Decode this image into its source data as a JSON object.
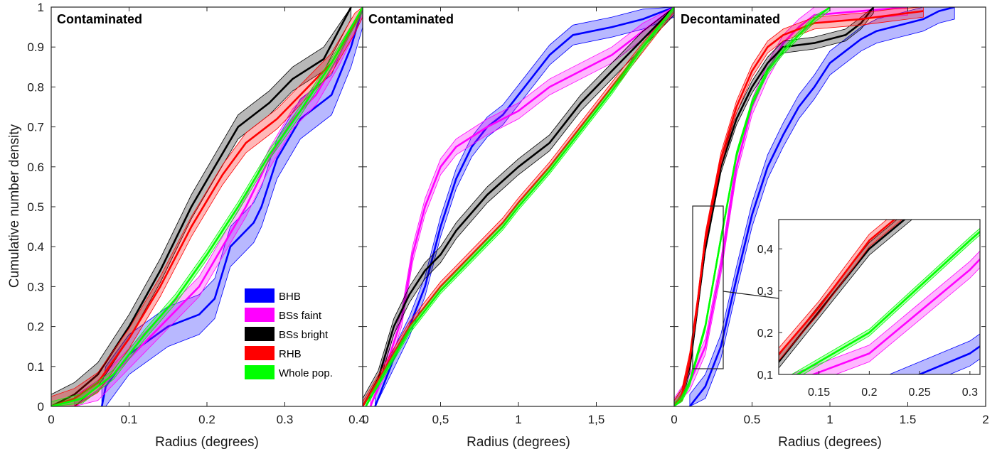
{
  "figure": {
    "ylabel": "Cumulative number density",
    "y_ticks": [
      "0",
      "0.1",
      "0.2",
      "0.3",
      "0.4",
      "0.5",
      "0.6",
      "0.7",
      "0.8",
      "0.9",
      "1"
    ]
  },
  "legend": {
    "items": [
      {
        "name": "BHB",
        "color": "#0000ff"
      },
      {
        "name": "BSs faint",
        "color": "#ff00ff"
      },
      {
        "name": "BSs bright",
        "color": "#000000"
      },
      {
        "name": "RHB",
        "color": "#ff0000"
      },
      {
        "name": "Whole pop.",
        "color": "#00ff00"
      }
    ]
  },
  "chart_data": [
    {
      "type": "line",
      "title": "Contaminated",
      "xlabel": "Radius (degrees)",
      "ylabel": "Cumulative number density",
      "xlim": [
        0,
        0.4
      ],
      "ylim": [
        0,
        1
      ],
      "x_ticks": [
        "0",
        "0.1",
        "0.2",
        "0.3",
        "0.4"
      ],
      "series": [
        {
          "name": "BHB",
          "color": "#0000ff",
          "band": 0.05,
          "points": [
            [
              0.065,
              0
            ],
            [
              0.07,
              0.05
            ],
            [
              0.1,
              0.13
            ],
            [
              0.15,
              0.2
            ],
            [
              0.19,
              0.23
            ],
            [
              0.21,
              0.27
            ],
            [
              0.23,
              0.4
            ],
            [
              0.26,
              0.46
            ],
            [
              0.27,
              0.5
            ],
            [
              0.29,
              0.62
            ],
            [
              0.32,
              0.72
            ],
            [
              0.36,
              0.78
            ],
            [
              0.385,
              0.9
            ],
            [
              0.4,
              1.0
            ]
          ]
        },
        {
          "name": "BSs faint",
          "color": "#ff00ff",
          "band": 0.025,
          "points": [
            [
              0.03,
              0
            ],
            [
              0.06,
              0.04
            ],
            [
              0.1,
              0.12
            ],
            [
              0.15,
              0.22
            ],
            [
              0.19,
              0.3
            ],
            [
              0.22,
              0.4
            ],
            [
              0.25,
              0.5
            ],
            [
              0.28,
              0.62
            ],
            [
              0.31,
              0.72
            ],
            [
              0.34,
              0.78
            ],
            [
              0.37,
              0.88
            ],
            [
              0.4,
              1.0
            ]
          ]
        },
        {
          "name": "BSs bright",
          "color": "#000000",
          "band": 0.03,
          "points": [
            [
              0,
              0
            ],
            [
              0.03,
              0.03
            ],
            [
              0.06,
              0.08
            ],
            [
              0.1,
              0.2
            ],
            [
              0.14,
              0.34
            ],
            [
              0.18,
              0.5
            ],
            [
              0.21,
              0.6
            ],
            [
              0.24,
              0.7
            ],
            [
              0.28,
              0.76
            ],
            [
              0.31,
              0.82
            ],
            [
              0.35,
              0.87
            ],
            [
              0.385,
              1.0
            ]
          ]
        },
        {
          "name": "RHB",
          "color": "#ff0000",
          "band": 0.025,
          "points": [
            [
              0,
              0
            ],
            [
              0.03,
              0.02
            ],
            [
              0.06,
              0.06
            ],
            [
              0.1,
              0.17
            ],
            [
              0.14,
              0.3
            ],
            [
              0.18,
              0.45
            ],
            [
              0.22,
              0.58
            ],
            [
              0.25,
              0.66
            ],
            [
              0.29,
              0.72
            ],
            [
              0.33,
              0.8
            ],
            [
              0.36,
              0.86
            ],
            [
              0.39,
              0.96
            ],
            [
              0.4,
              1.0
            ]
          ]
        },
        {
          "name": "Whole pop.",
          "color": "#00ff00",
          "band": 0.012,
          "points": [
            [
              0,
              0
            ],
            [
              0.04,
              0.02
            ],
            [
              0.08,
              0.08
            ],
            [
              0.12,
              0.18
            ],
            [
              0.16,
              0.27
            ],
            [
              0.2,
              0.38
            ],
            [
              0.24,
              0.5
            ],
            [
              0.28,
              0.63
            ],
            [
              0.32,
              0.74
            ],
            [
              0.36,
              0.86
            ],
            [
              0.4,
              1.0
            ]
          ]
        }
      ]
    },
    {
      "type": "line",
      "title": "Contaminated",
      "xlabel": "Radius (degrees)",
      "xlim": [
        0,
        2
      ],
      "ylim": [
        0,
        1
      ],
      "x_ticks": [
        "0",
        "0,5",
        "1",
        "1,5"
      ],
      "series": [
        {
          "name": "BHB",
          "color": "#0000ff",
          "band": 0.025,
          "points": [
            [
              0.08,
              0
            ],
            [
              0.2,
              0.12
            ],
            [
              0.3,
              0.2
            ],
            [
              0.4,
              0.3
            ],
            [
              0.5,
              0.45
            ],
            [
              0.6,
              0.57
            ],
            [
              0.7,
              0.65
            ],
            [
              0.8,
              0.7
            ],
            [
              0.9,
              0.73
            ],
            [
              1.0,
              0.78
            ],
            [
              1.1,
              0.83
            ],
            [
              1.2,
              0.88
            ],
            [
              1.35,
              0.93
            ],
            [
              1.6,
              0.95
            ],
            [
              1.8,
              0.97
            ],
            [
              2.0,
              1.0
            ]
          ]
        },
        {
          "name": "BSs faint",
          "color": "#ff00ff",
          "band": 0.02,
          "points": [
            [
              0.05,
              0
            ],
            [
              0.15,
              0.1
            ],
            [
              0.25,
              0.22
            ],
            [
              0.32,
              0.38
            ],
            [
              0.4,
              0.5
            ],
            [
              0.5,
              0.6
            ],
            [
              0.6,
              0.65
            ],
            [
              0.8,
              0.7
            ],
            [
              1.0,
              0.74
            ],
            [
              1.2,
              0.8
            ],
            [
              1.4,
              0.84
            ],
            [
              1.6,
              0.88
            ],
            [
              1.8,
              0.94
            ],
            [
              2.0,
              1.0
            ]
          ]
        },
        {
          "name": "BSs bright",
          "color": "#000000",
          "band": 0.02,
          "points": [
            [
              0,
              0
            ],
            [
              0.1,
              0.07
            ],
            [
              0.2,
              0.2
            ],
            [
              0.3,
              0.28
            ],
            [
              0.4,
              0.34
            ],
            [
              0.5,
              0.38
            ],
            [
              0.6,
              0.44
            ],
            [
              0.8,
              0.53
            ],
            [
              1.0,
              0.6
            ],
            [
              1.2,
              0.66
            ],
            [
              1.4,
              0.76
            ],
            [
              1.6,
              0.84
            ],
            [
              1.8,
              0.92
            ],
            [
              2.0,
              1.0
            ]
          ]
        },
        {
          "name": "RHB",
          "color": "#ff0000",
          "band": 0.012,
          "points": [
            [
              0,
              0
            ],
            [
              0.15,
              0.1
            ],
            [
              0.3,
              0.2
            ],
            [
              0.5,
              0.3
            ],
            [
              0.7,
              0.38
            ],
            [
              0.9,
              0.46
            ],
            [
              1.0,
              0.51
            ],
            [
              1.2,
              0.6
            ],
            [
              1.4,
              0.7
            ],
            [
              1.6,
              0.8
            ],
            [
              1.8,
              0.9
            ],
            [
              2.0,
              1.0
            ]
          ]
        },
        {
          "name": "Whole pop.",
          "color": "#00ff00",
          "band": 0.008,
          "points": [
            [
              0.02,
              0
            ],
            [
              0.15,
              0.09
            ],
            [
              0.3,
              0.19
            ],
            [
              0.5,
              0.29
            ],
            [
              0.7,
              0.37
            ],
            [
              0.9,
              0.45
            ],
            [
              1.0,
              0.5
            ],
            [
              1.2,
              0.59
            ],
            [
              1.4,
              0.69
            ],
            [
              1.6,
              0.79
            ],
            [
              1.8,
              0.9
            ],
            [
              2.0,
              1.0
            ]
          ]
        }
      ]
    },
    {
      "type": "line",
      "title": "Decontaminated",
      "xlabel": "Radius (degrees)",
      "xlim": [
        0,
        2
      ],
      "ylim": [
        0,
        1
      ],
      "x_ticks": [
        "0",
        "0.5",
        "1",
        "1.5",
        "2"
      ],
      "series": [
        {
          "name": "BHB",
          "color": "#0000ff",
          "band": 0.03,
          "points": [
            [
              0.1,
              0
            ],
            [
              0.2,
              0.05
            ],
            [
              0.3,
              0.15
            ],
            [
              0.4,
              0.32
            ],
            [
              0.5,
              0.48
            ],
            [
              0.6,
              0.6
            ],
            [
              0.7,
              0.68
            ],
            [
              0.8,
              0.75
            ],
            [
              0.9,
              0.8
            ],
            [
              1.0,
              0.86
            ],
            [
              1.1,
              0.89
            ],
            [
              1.2,
              0.92
            ],
            [
              1.3,
              0.94
            ],
            [
              1.4,
              0.95
            ],
            [
              1.6,
              0.97
            ],
            [
              1.7,
              0.99
            ],
            [
              1.8,
              1.0
            ]
          ]
        },
        {
          "name": "BSs faint",
          "color": "#ff00ff",
          "band": 0.02,
          "points": [
            [
              0,
              0
            ],
            [
              0.1,
              0.06
            ],
            [
              0.2,
              0.15
            ],
            [
              0.3,
              0.35
            ],
            [
              0.4,
              0.6
            ],
            [
              0.5,
              0.75
            ],
            [
              0.6,
              0.84
            ],
            [
              0.7,
              0.91
            ],
            [
              0.8,
              0.95
            ],
            [
              0.9,
              0.98
            ],
            [
              1.2,
              0.99
            ],
            [
              1.5,
              1.0
            ]
          ]
        },
        {
          "name": "BSs bright",
          "color": "#000000",
          "band": 0.015,
          "points": [
            [
              0,
              0
            ],
            [
              0.05,
              0.03
            ],
            [
              0.1,
              0.1
            ],
            [
              0.15,
              0.25
            ],
            [
              0.2,
              0.4
            ],
            [
              0.3,
              0.6
            ],
            [
              0.4,
              0.72
            ],
            [
              0.5,
              0.8
            ],
            [
              0.6,
              0.86
            ],
            [
              0.7,
              0.9
            ],
            [
              0.9,
              0.91
            ],
            [
              1.1,
              0.93
            ],
            [
              1.2,
              0.96
            ],
            [
              1.28,
              1.0
            ]
          ]
        },
        {
          "name": "RHB",
          "color": "#ff0000",
          "band": 0.015,
          "points": [
            [
              0,
              0
            ],
            [
              0.05,
              0.03
            ],
            [
              0.1,
              0.12
            ],
            [
              0.15,
              0.26
            ],
            [
              0.2,
              0.42
            ],
            [
              0.3,
              0.62
            ],
            [
              0.4,
              0.75
            ],
            [
              0.5,
              0.84
            ],
            [
              0.6,
              0.9
            ],
            [
              0.7,
              0.93
            ],
            [
              0.9,
              0.96
            ],
            [
              1.2,
              0.97
            ],
            [
              1.4,
              0.98
            ],
            [
              1.6,
              0.99
            ]
          ]
        },
        {
          "name": "Whole pop.",
          "color": "#00ff00",
          "band": 0.008,
          "points": [
            [
              0,
              0
            ],
            [
              0.05,
              0.02
            ],
            [
              0.1,
              0.06
            ],
            [
              0.2,
              0.2
            ],
            [
              0.3,
              0.42
            ],
            [
              0.4,
              0.63
            ],
            [
              0.5,
              0.76
            ],
            [
              0.6,
              0.84
            ],
            [
              0.7,
              0.89
            ],
            [
              0.8,
              0.93
            ],
            [
              0.9,
              0.97
            ],
            [
              1.0,
              1.0
            ]
          ]
        }
      ],
      "inset": {
        "xlim": [
          0.11,
          0.31
        ],
        "ylim": [
          0.1,
          0.47
        ],
        "x_ticks": [
          "0.15",
          "0.2",
          "0.25",
          "0.3"
        ],
        "y_ticks": [
          "0,1",
          "0,2",
          "0,3",
          "0,4"
        ]
      }
    }
  ]
}
